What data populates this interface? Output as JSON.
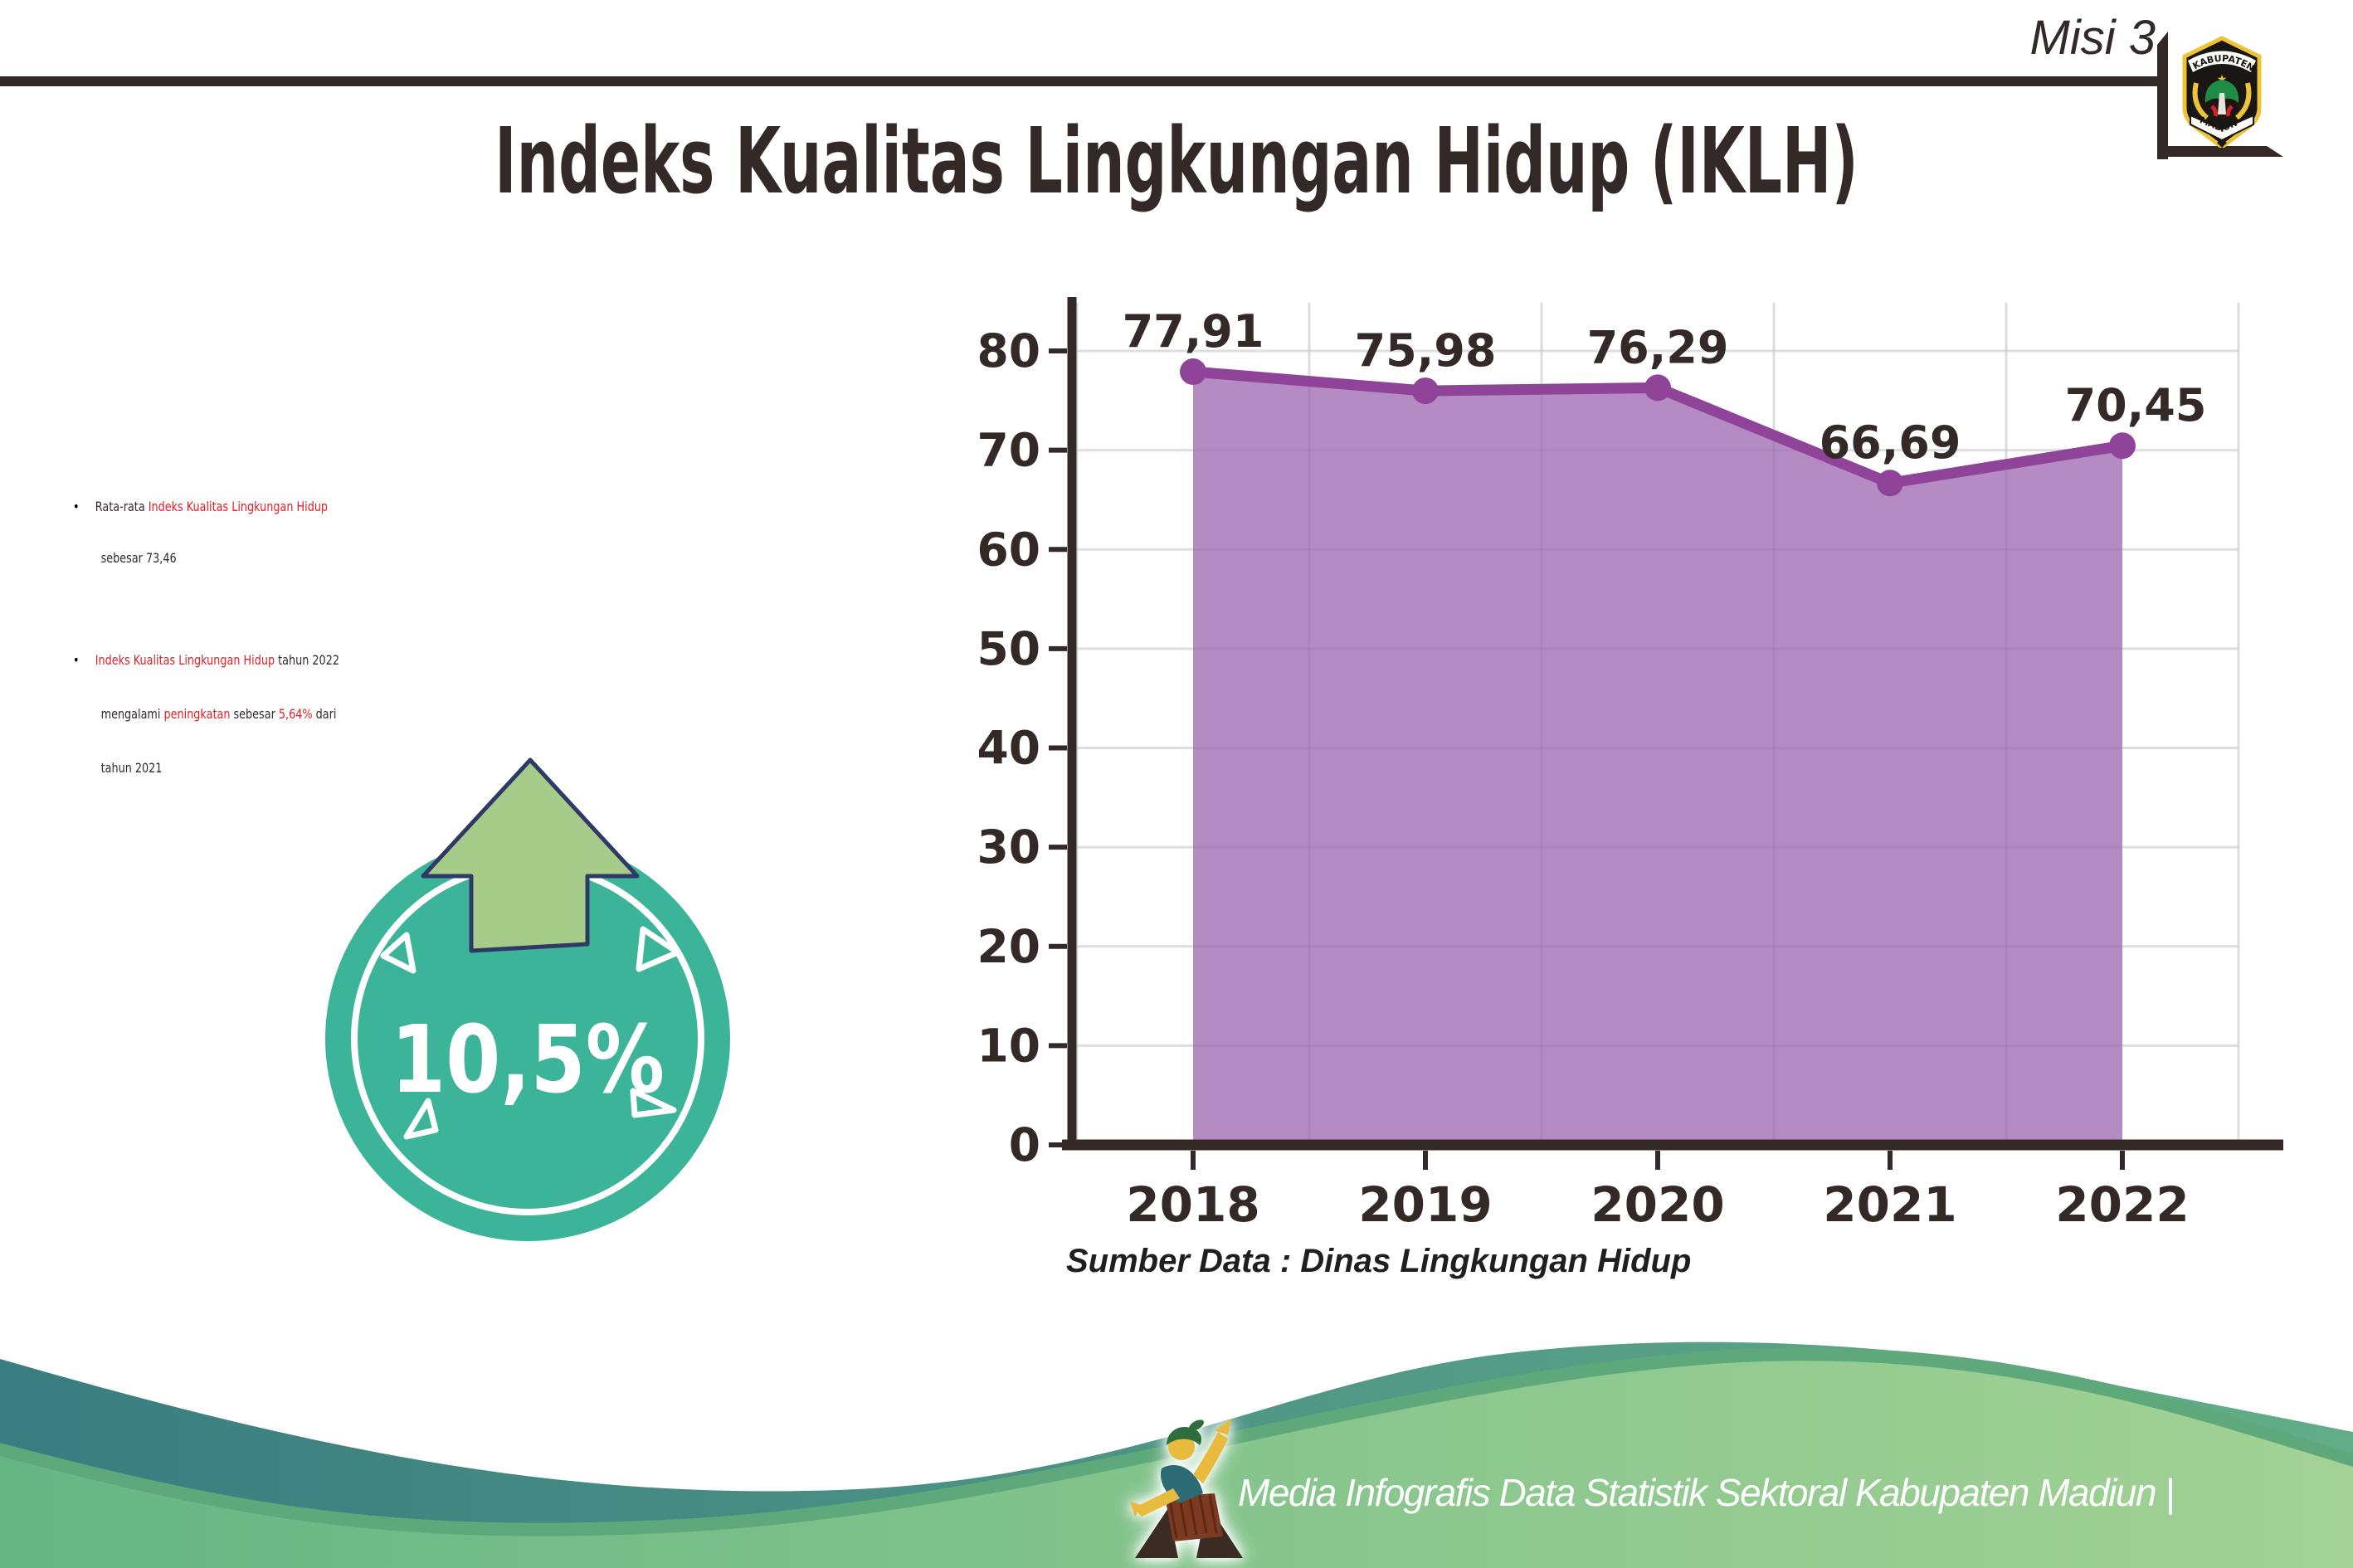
{
  "header": {
    "misi": "Misi 3",
    "title": "Indeks Kualitas Lingkungan Hidup (IKLH)",
    "logo": {
      "top": "KABUPATEN",
      "bottom": "MADIUN"
    }
  },
  "bullets": {
    "dot": "•",
    "b1_l1_dark": "Rata-rata ",
    "b1_l1_red": "Indeks Kualitas Lingkungan Hidup",
    "b1_l2": "sebesar 73,46",
    "b2_l1_red": "Indeks Kualitas Lingkungan Hidup",
    "b2_l1_dark": " tahun 2022",
    "b2_l2_d1": "mengalami ",
    "b2_l2_r1": "peningkatan",
    "b2_l2_d2": " sebesar ",
    "b2_l2_r2": "5,64%",
    "b2_l2_d3": " dari",
    "b2_l3": "tahun 2021"
  },
  "badge": {
    "value": "10,5%"
  },
  "chart_data": {
    "type": "area",
    "categories": [
      "2018",
      "2019",
      "2020",
      "2021",
      "2022"
    ],
    "values": [
      77.91,
      75.98,
      76.29,
      66.69,
      70.45
    ],
    "value_labels": [
      "77,91",
      "75,98",
      "76,29",
      "66,69",
      "70,45"
    ],
    "title": "",
    "xlabel": "",
    "ylabel": "",
    "ylim": [
      0,
      80
    ],
    "ytick_step": 10,
    "yticks": [
      0,
      10,
      20,
      30,
      40,
      50,
      60,
      70,
      80
    ],
    "grid": true,
    "legend": "none",
    "fill_color": "#b58bc4",
    "line_color": "#8f4399",
    "source": "Sumber Data : Dinas Lingkungan Hidup"
  },
  "footer": {
    "text": "Media Infografis Data Statistik Sektoral Kabupaten Madiun |"
  },
  "colors": {
    "dark": "#332a28",
    "red": "#e51e26",
    "teal_badge": "#3cb499",
    "arrow_green": "#a7cc8a",
    "arrow_outline": "#2e3a66",
    "axis": "#332a28",
    "grid": "#e8e8e8",
    "wave_teal_a": "#3a7d81",
    "wave_teal_b": "#62ad88",
    "wave_green_a": "#66b685",
    "wave_green_b": "#a3d294",
    "wave_green_edge": "#5ea87b"
  }
}
